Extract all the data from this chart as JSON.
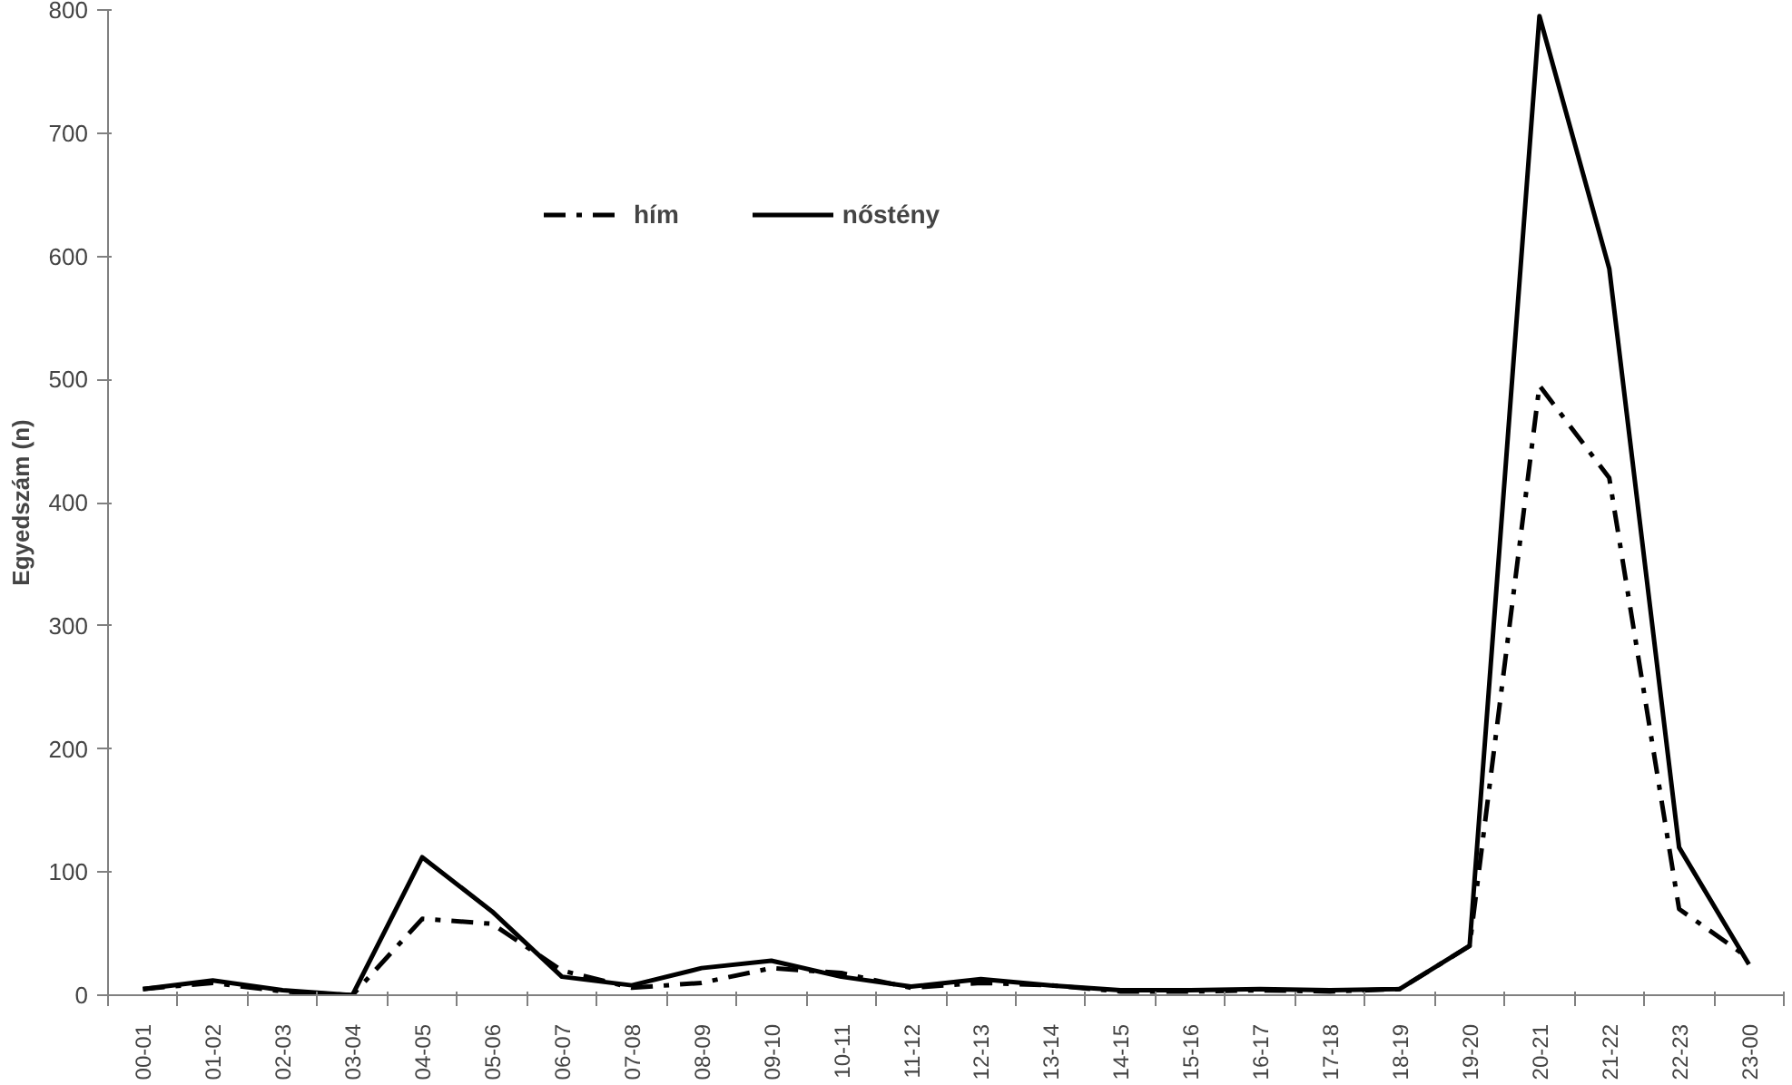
{
  "chart_data": {
    "type": "line",
    "ylabel": "Egyedszám (n)",
    "categories": [
      "00-01",
      "01-02",
      "02-03",
      "03-04",
      "04-05",
      "05-06",
      "06-07",
      "07-08",
      "08-09",
      "09-10",
      "10-11",
      "11-12",
      "12-13",
      "13-14",
      "14-15",
      "15-16",
      "16-17",
      "17-18",
      "18-19",
      "19-20",
      "20-21",
      "21-22",
      "22-23",
      "23-00"
    ],
    "series": [
      {
        "name": "hím",
        "color": "#000000",
        "line_style": "dashed",
        "values": [
          5,
          10,
          3,
          0,
          62,
          58,
          20,
          6,
          10,
          22,
          18,
          6,
          10,
          8,
          3,
          3,
          4,
          3,
          5,
          40,
          495,
          420,
          70,
          30
        ]
      },
      {
        "name": "nőstény",
        "color": "#000000",
        "line_style": "solid",
        "values": [
          5,
          12,
          4,
          0,
          112,
          68,
          15,
          8,
          22,
          28,
          15,
          7,
          13,
          8,
          4,
          4,
          5,
          4,
          5,
          40,
          795,
          590,
          120,
          25
        ]
      }
    ],
    "ylim": [
      0,
      800
    ],
    "yticks": [
      0,
      100,
      200,
      300,
      400,
      500,
      600,
      700,
      800
    ],
    "grid": false,
    "legend": "top",
    "marker": "none"
  }
}
